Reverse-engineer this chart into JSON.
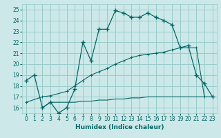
{
  "xlabel": "Humidex (Indice chaleur)",
  "bg_color": "#cce8e8",
  "grid_color": "#99cccc",
  "line_color": "#006666",
  "xlim": [
    -0.5,
    23.5
  ],
  "ylim": [
    15.5,
    25.5
  ],
  "yticks": [
    16,
    17,
    18,
    19,
    20,
    21,
    22,
    23,
    24,
    25
  ],
  "xticks": [
    0,
    1,
    2,
    3,
    4,
    5,
    6,
    7,
    8,
    9,
    10,
    11,
    12,
    13,
    14,
    15,
    16,
    17,
    18,
    19,
    20,
    21,
    22,
    23
  ],
  "line1_x": [
    0,
    1,
    2,
    3,
    4,
    5,
    6,
    7,
    8,
    9,
    10,
    11,
    12,
    13,
    14,
    15,
    16,
    17,
    18,
    19,
    20,
    21,
    22,
    23
  ],
  "line1_y": [
    18.5,
    19.0,
    16.0,
    16.5,
    15.5,
    16.0,
    17.7,
    22.0,
    20.3,
    23.2,
    23.2,
    24.9,
    24.7,
    24.3,
    24.3,
    24.7,
    24.3,
    24.0,
    23.6,
    21.5,
    21.7,
    19.0,
    18.2,
    17.0
  ],
  "line2_x": [
    2,
    3,
    4,
    5,
    6,
    7,
    8,
    9,
    10,
    11,
    12,
    13,
    14,
    15,
    16,
    17,
    18,
    19,
    20,
    21,
    22,
    23
  ],
  "line2_y": [
    16.0,
    16.5,
    16.5,
    16.5,
    16.5,
    16.6,
    16.6,
    16.7,
    16.7,
    16.8,
    16.8,
    16.9,
    16.9,
    17.0,
    17.0,
    17.0,
    17.0,
    17.0,
    17.0,
    17.0,
    17.0,
    17.0
  ],
  "line3_x": [
    0,
    2,
    3,
    5,
    6,
    7,
    8,
    9,
    10,
    11,
    12,
    13,
    14,
    15,
    16,
    17,
    18,
    19,
    20,
    21,
    22
  ],
  "line3_y": [
    16.5,
    17.0,
    17.1,
    17.5,
    18.0,
    18.5,
    19.0,
    19.3,
    19.6,
    20.0,
    20.3,
    20.6,
    20.8,
    20.9,
    21.0,
    21.1,
    21.3,
    21.5,
    21.5,
    21.5,
    17.0
  ]
}
